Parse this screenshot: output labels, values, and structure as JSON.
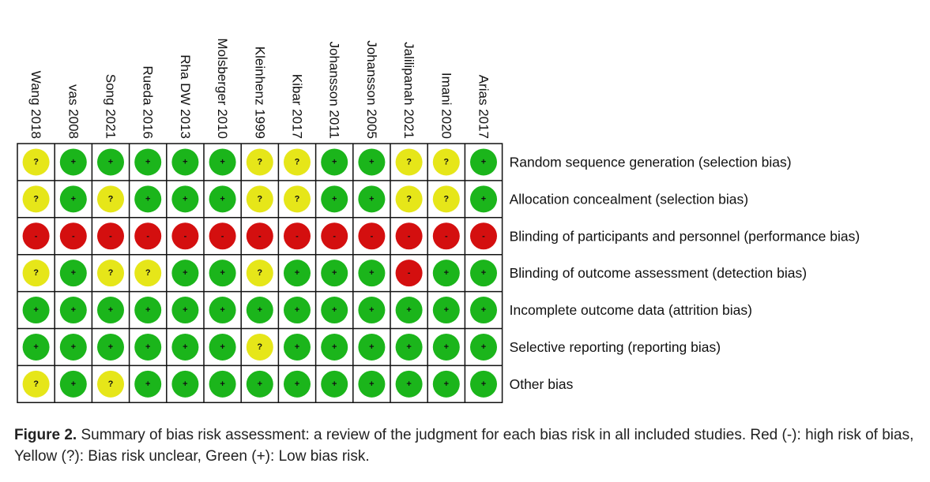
{
  "figure": {
    "studies": [
      "Wang 2018",
      "vas 2008",
      "Song 2021",
      "Rueda 2016",
      "Rha DW 2013",
      "Molsberger 2010",
      "Kleinhenz 1999",
      "Kibar 2017",
      "Johansson 2011",
      "Johansson 2005",
      "Jalilipanah 2021",
      "Imani 2020",
      "Arias 2017"
    ],
    "domains": [
      "Random sequence generation (selection bias)",
      "Allocation concealment (selection bias)",
      "Blinding of participants and personnel (performance bias)",
      "Blinding of outcome assessment (detection bias)",
      "Incomplete outcome data (attrition bias)",
      "Selective reporting (reporting bias)",
      "Other bias"
    ],
    "judgments": [
      [
        "?",
        "+",
        "+",
        "+",
        "+",
        "+",
        "?",
        "?",
        "+",
        "+",
        "?",
        "?",
        "+"
      ],
      [
        "?",
        "+",
        "?",
        "+",
        "+",
        "+",
        "?",
        "?",
        "+",
        "+",
        "?",
        "?",
        "+"
      ],
      [
        "-",
        "-",
        "-",
        "-",
        "-",
        "-",
        "-",
        "-",
        "-",
        "-",
        "-",
        "-",
        "-"
      ],
      [
        "?",
        "+",
        "?",
        "?",
        "+",
        "+",
        "?",
        "+",
        "+",
        "+",
        "-",
        "+",
        "+"
      ],
      [
        "+",
        "+",
        "+",
        "+",
        "+",
        "+",
        "+",
        "+",
        "+",
        "+",
        "+",
        "+",
        "+"
      ],
      [
        "+",
        "+",
        "+",
        "+",
        "+",
        "+",
        "?",
        "+",
        "+",
        "+",
        "+",
        "+",
        "+"
      ],
      [
        "?",
        "+",
        "?",
        "+",
        "+",
        "+",
        "+",
        "+",
        "+",
        "+",
        "+",
        "+",
        "+"
      ]
    ],
    "colors": {
      "+": "#1bb51b",
      "?": "#e6e619",
      "-": "#d40f0f"
    }
  },
  "caption": {
    "label": "Figure 2.",
    "text": "Summary of bias risk assessment: a review of the judgment for each bias risk in all included studies. Red (-): high risk of bias, Yellow (?): Bias risk unclear, Green (+): Low bias risk."
  }
}
